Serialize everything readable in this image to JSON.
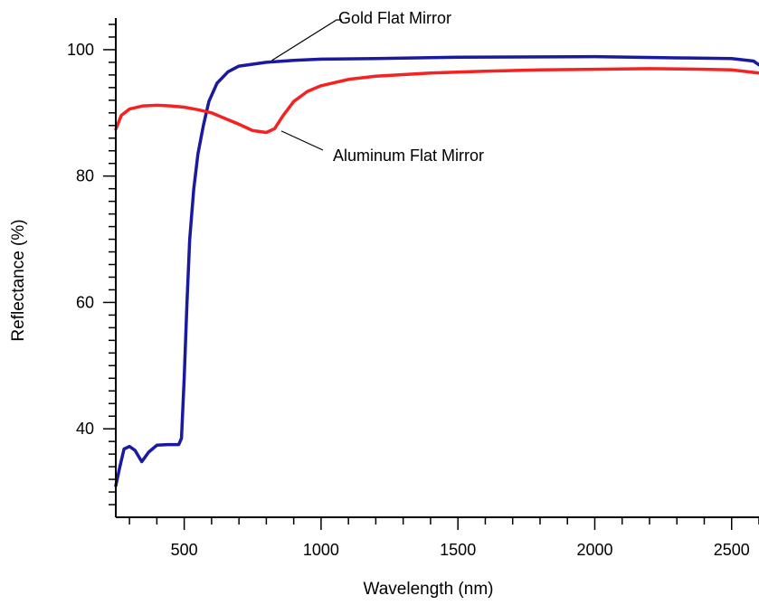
{
  "chart_data": {
    "type": "line",
    "title": "",
    "xlabel": "Wavelength (nm)",
    "ylabel": "Reflectance (%)",
    "xlim": [
      250,
      2600
    ],
    "ylim": [
      26,
      105
    ],
    "x_ticks": [
      500,
      1000,
      1500,
      2000,
      2500
    ],
    "y_ticks": [
      40,
      60,
      80,
      100
    ],
    "grid": false,
    "legend": "none",
    "series": [
      {
        "name": "Gold Flat Mirror",
        "color": "#1a1aa0",
        "points": [
          [
            250,
            31
          ],
          [
            265,
            34
          ],
          [
            280,
            36.8
          ],
          [
            300,
            37.2
          ],
          [
            320,
            36.6
          ],
          [
            345,
            34.8
          ],
          [
            370,
            36.3
          ],
          [
            400,
            37.4
          ],
          [
            440,
            37.5
          ],
          [
            480,
            37.5
          ],
          [
            490,
            38.5
          ],
          [
            500,
            48
          ],
          [
            510,
            60
          ],
          [
            520,
            70
          ],
          [
            535,
            78
          ],
          [
            550,
            83.5
          ],
          [
            570,
            88
          ],
          [
            590,
            91.8
          ],
          [
            620,
            94.7
          ],
          [
            660,
            96.5
          ],
          [
            700,
            97.4
          ],
          [
            800,
            98.0
          ],
          [
            900,
            98.3
          ],
          [
            1000,
            98.5
          ],
          [
            1200,
            98.6
          ],
          [
            1500,
            98.8
          ],
          [
            2000,
            98.9
          ],
          [
            2300,
            98.7
          ],
          [
            2500,
            98.6
          ],
          [
            2580,
            98.2
          ],
          [
            2600,
            97.6
          ]
        ]
      },
      {
        "name": "Aluminum Flat Mirror",
        "color": "#f42222",
        "points": [
          [
            250,
            87.4
          ],
          [
            270,
            89.6
          ],
          [
            300,
            90.6
          ],
          [
            350,
            91.1
          ],
          [
            400,
            91.2
          ],
          [
            450,
            91.1
          ],
          [
            500,
            90.9
          ],
          [
            550,
            90.5
          ],
          [
            600,
            90.0
          ],
          [
            650,
            89.1
          ],
          [
            700,
            88.2
          ],
          [
            750,
            87.2
          ],
          [
            800,
            86.9
          ],
          [
            830,
            87.5
          ],
          [
            860,
            89.5
          ],
          [
            900,
            91.8
          ],
          [
            950,
            93.4
          ],
          [
            1000,
            94.3
          ],
          [
            1100,
            95.3
          ],
          [
            1200,
            95.8
          ],
          [
            1400,
            96.3
          ],
          [
            1600,
            96.6
          ],
          [
            1800,
            96.8
          ],
          [
            2000,
            96.9
          ],
          [
            2200,
            97.0
          ],
          [
            2400,
            96.9
          ],
          [
            2500,
            96.8
          ],
          [
            2600,
            96.3
          ]
        ]
      }
    ],
    "annotations": [
      {
        "text": "Gold Flat Mirror",
        "series": 0,
        "x": 820,
        "y": 98.0
      },
      {
        "text": "Aluminum Flat Mirror",
        "series": 1,
        "x": 855,
        "y": 87.7
      }
    ]
  }
}
